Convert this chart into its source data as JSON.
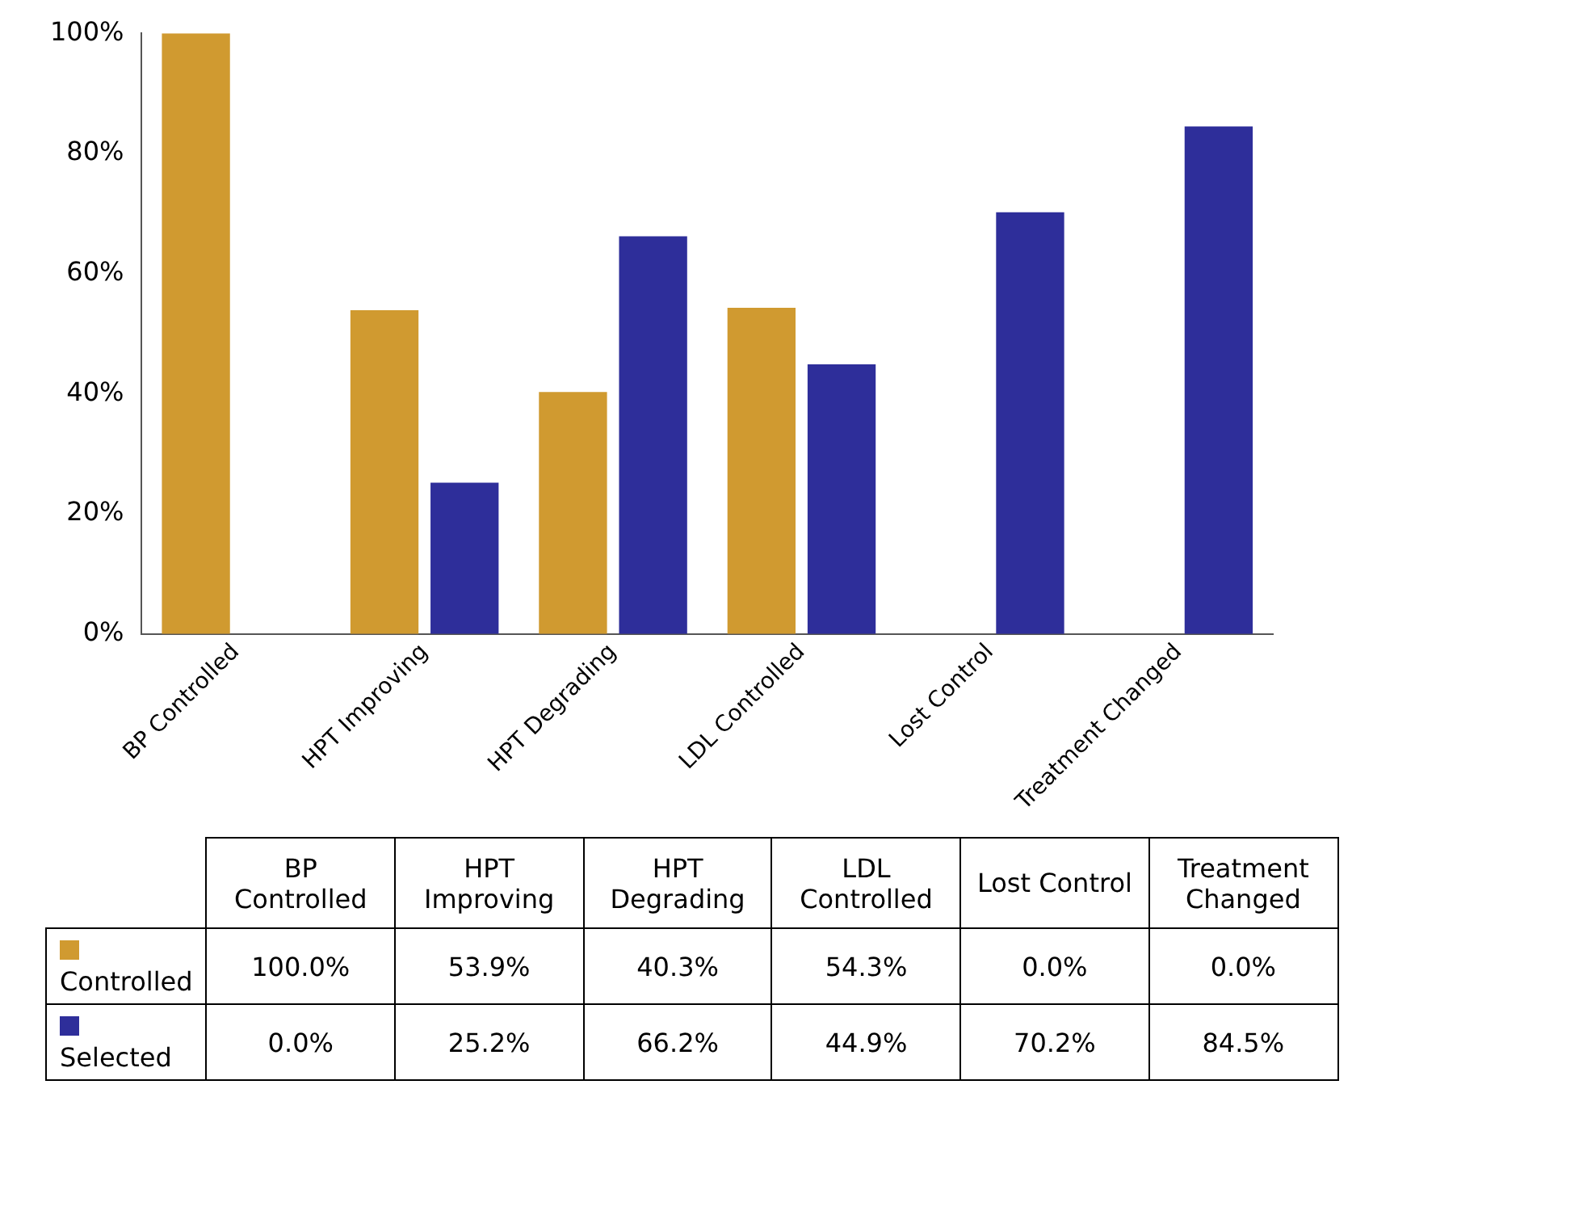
{
  "chart_data": {
    "type": "bar",
    "categories": [
      "BP Controlled",
      "HPT Improving",
      "HPT Degrading",
      "LDL Controlled",
      "Lost Control",
      "Treatment Changed"
    ],
    "series": [
      {
        "name": "Controlled",
        "color": "#d09a30",
        "values": [
          100.0,
          53.9,
          40.3,
          54.3,
          0.0,
          0.0
        ],
        "value_labels": [
          "100.0%",
          "53.9%",
          "40.3%",
          "54.3%",
          "0.0%",
          "0.0%"
        ]
      },
      {
        "name": "Selected",
        "color": "#2e2e9a",
        "values": [
          0.0,
          25.2,
          66.2,
          44.9,
          70.2,
          84.5
        ],
        "value_labels": [
          "0.0%",
          "25.2%",
          "66.2%",
          "44.9%",
          "70.2%",
          "84.5%"
        ]
      }
    ],
    "legend": "bottom",
    "ylim": [
      0,
      100
    ],
    "yticks": [
      {
        "value": 0,
        "label": "0%"
      },
      {
        "value": 20,
        "label": "20%"
      },
      {
        "value": 40,
        "label": "40%"
      },
      {
        "value": 60,
        "label": "60%"
      },
      {
        "value": 80,
        "label": "80%"
      },
      {
        "value": 100,
        "label": "100%"
      }
    ]
  }
}
